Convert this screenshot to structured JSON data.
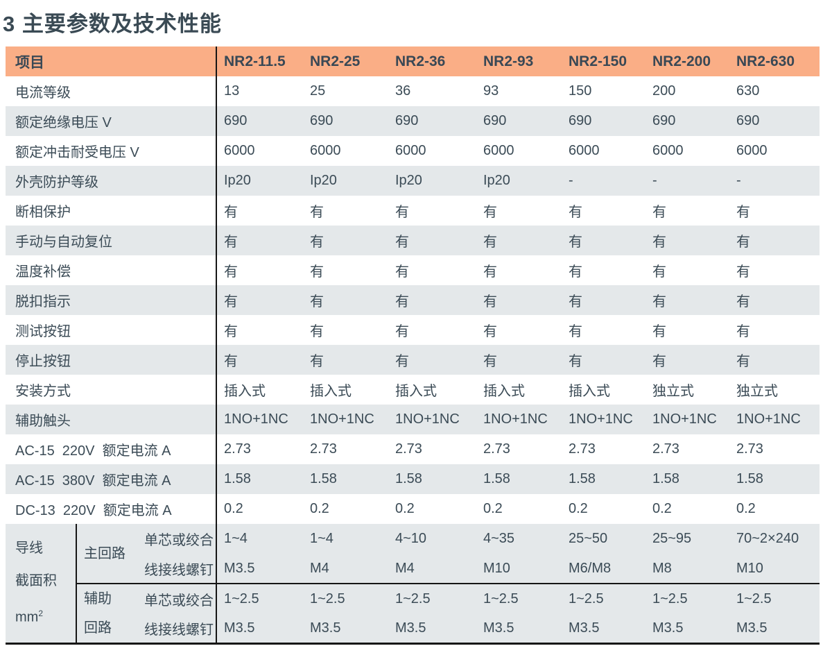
{
  "page": {
    "title": "3 主要参数及技术性能"
  },
  "colors": {
    "header_bg": "#faae86",
    "alt_row_bg": "#e4e8ea",
    "text": "#3b4b56",
    "divider_line": "#161616"
  },
  "table": {
    "header": {
      "item_label": "项目",
      "models": [
        "NR2-11.5",
        "NR2-25",
        "NR2-36",
        "NR2-93",
        "NR2-150",
        "NR2-200",
        "NR2-630"
      ]
    },
    "rows": [
      {
        "label": "电流等级",
        "values": [
          "13",
          "25",
          "36",
          "93",
          "150",
          "200",
          "630"
        ]
      },
      {
        "label": "额定绝缘电压 V",
        "values": [
          "690",
          "690",
          "690",
          "690",
          "690",
          "690",
          "690"
        ]
      },
      {
        "label": "额定冲击耐受电压 V",
        "values": [
          "6000",
          "6000",
          "6000",
          "6000",
          "6000",
          "6000",
          "6000"
        ]
      },
      {
        "label": "外壳防护等级",
        "values": [
          "Ip20",
          "Ip20",
          "Ip20",
          "Ip20",
          "-",
          "-",
          "-"
        ]
      },
      {
        "label": "断相保护",
        "values": [
          "有",
          "有",
          "有",
          "有",
          "有",
          "有",
          "有"
        ]
      },
      {
        "label": "手动与自动复位",
        "values": [
          "有",
          "有",
          "有",
          "有",
          "有",
          "有",
          "有"
        ]
      },
      {
        "label": "温度补偿",
        "values": [
          "有",
          "有",
          "有",
          "有",
          "有",
          "有",
          "有"
        ]
      },
      {
        "label": "脱扣指示",
        "values": [
          "有",
          "有",
          "有",
          "有",
          "有",
          "有",
          "有"
        ]
      },
      {
        "label": "测试按钮",
        "values": [
          "有",
          "有",
          "有",
          "有",
          "有",
          "有",
          "有"
        ]
      },
      {
        "label": "停止按钮",
        "values": [
          "有",
          "有",
          "有",
          "有",
          "有",
          "有",
          "有"
        ]
      },
      {
        "label": "安装方式",
        "values": [
          "插入式",
          "插入式",
          "插入式",
          "插入式",
          "插入式",
          "独立式",
          "独立式"
        ]
      },
      {
        "label": "辅助触头",
        "values": [
          "1NO+1NC",
          "1NO+1NC",
          "1NO+1NC",
          "1NO+1NC",
          "1NO+1NC",
          "1NO+1NC",
          "1NO+1NC"
        ]
      },
      {
        "label": "AC-15  220V  额定电流 A",
        "values": [
          "2.73",
          "2.73",
          "2.73",
          "2.73",
          "2.73",
          "2.73",
          "2.73"
        ]
      },
      {
        "label": "AC-15  380V  额定电流 A",
        "values": [
          "1.58",
          "1.58",
          "1.58",
          "1.58",
          "1.58",
          "1.58",
          "1.58"
        ]
      },
      {
        "label": "DC-13  220V  额定电流 A",
        "values": [
          "0.2",
          "0.2",
          "0.2",
          "0.2",
          "0.2",
          "0.2",
          "0.2"
        ]
      }
    ],
    "wire_section": {
      "left_title_lines": [
        "导线",
        "截面积"
      ],
      "unit_base": "mm",
      "unit_sup": "2",
      "groups": [
        {
          "name_lines": [
            "主回路"
          ],
          "rows": [
            {
              "label": "单芯或绞合",
              "values": [
                "1~4",
                "1~4",
                "4~10",
                "4~35",
                "25~50",
                "25~95",
                "70~2×240"
              ]
            },
            {
              "label": "线接线螺钉",
              "values": [
                "M3.5",
                "M4",
                "M4",
                "M10",
                "M6/M8",
                "M8",
                "M10"
              ]
            }
          ]
        },
        {
          "name_lines": [
            "辅助",
            "回路"
          ],
          "rows": [
            {
              "label": "单芯或绞合",
              "values": [
                "1~2.5",
                "1~2.5",
                "1~2.5",
                "1~2.5",
                "1~2.5",
                "1~2.5",
                "1~2.5"
              ]
            },
            {
              "label": "线接线螺钉",
              "values": [
                "M3.5",
                "M3.5",
                "M3.5",
                "M3.5",
                "M3.5",
                "M3.5",
                "M3.5"
              ]
            }
          ]
        }
      ]
    }
  }
}
